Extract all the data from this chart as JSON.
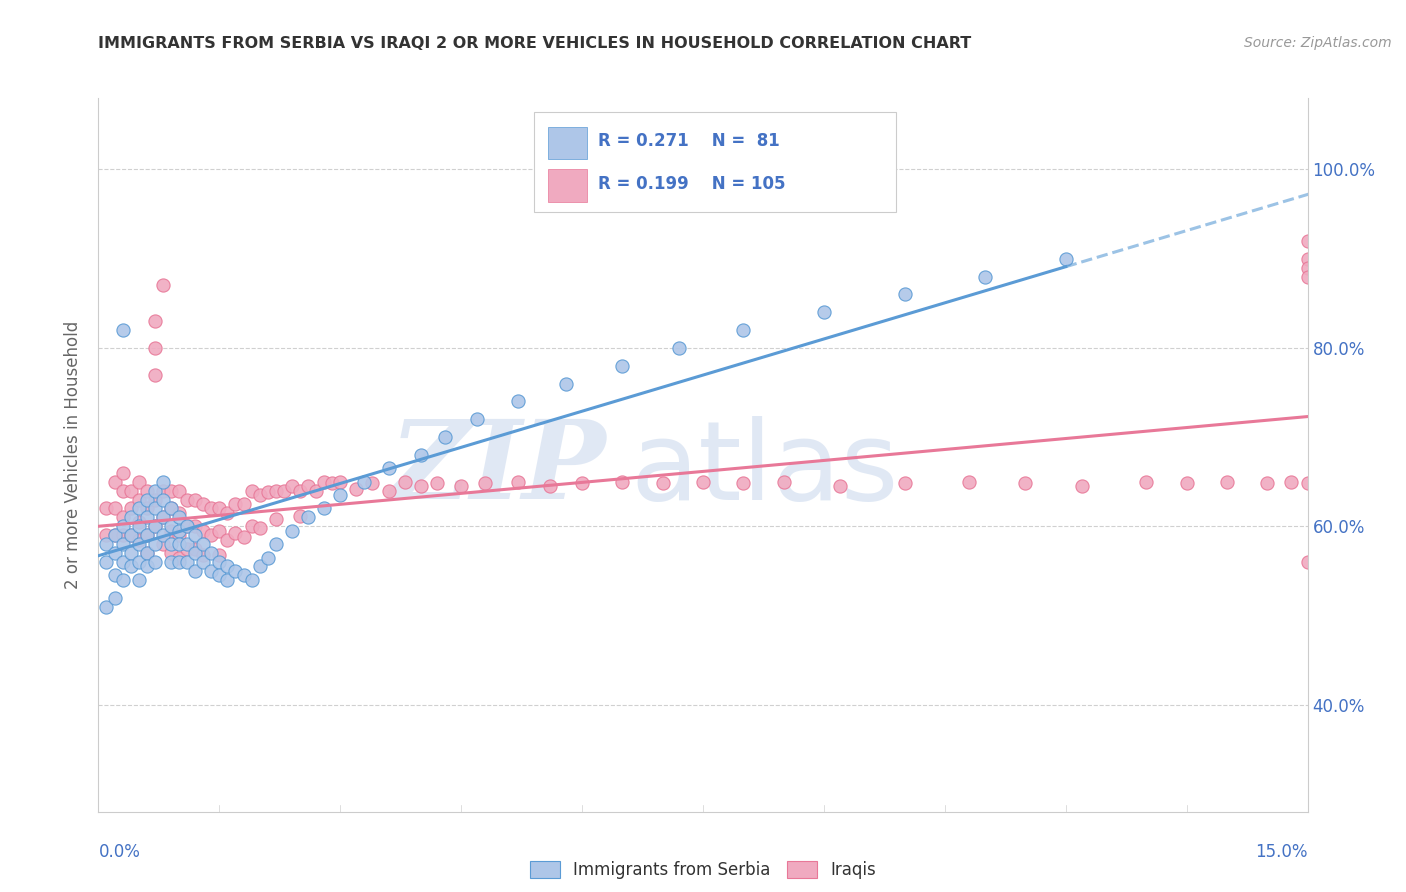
{
  "title": "IMMIGRANTS FROM SERBIA VS IRAQI 2 OR MORE VEHICLES IN HOUSEHOLD CORRELATION CHART",
  "source": "Source: ZipAtlas.com",
  "ylabel": "2 or more Vehicles in Household",
  "ytick_labels": [
    "40.0%",
    "60.0%",
    "80.0%",
    "100.0%"
  ],
  "ytick_values": [
    0.4,
    0.6,
    0.8,
    1.0
  ],
  "xlim": [
    0.0,
    0.15
  ],
  "ylim": [
    0.28,
    1.08
  ],
  "color_serbia": "#aec6e8",
  "color_iraq": "#f0aac0",
  "color_serbia_dark": "#5b9bd5",
  "color_iraq_dark": "#e87898",
  "color_blue_text": "#4472c4",
  "color_grid": "#d0d0d0",
  "watermark_zip": "#ccdaee",
  "watermark_atlas": "#ccdaee",
  "legend_text_color": "#4472c4",
  "serbia_scatter_x": [
    0.001,
    0.001,
    0.001,
    0.002,
    0.002,
    0.002,
    0.002,
    0.003,
    0.003,
    0.003,
    0.003,
    0.003,
    0.004,
    0.004,
    0.004,
    0.004,
    0.005,
    0.005,
    0.005,
    0.005,
    0.005,
    0.006,
    0.006,
    0.006,
    0.006,
    0.006,
    0.007,
    0.007,
    0.007,
    0.007,
    0.007,
    0.008,
    0.008,
    0.008,
    0.008,
    0.009,
    0.009,
    0.009,
    0.009,
    0.01,
    0.01,
    0.01,
    0.01,
    0.011,
    0.011,
    0.011,
    0.012,
    0.012,
    0.012,
    0.013,
    0.013,
    0.014,
    0.014,
    0.015,
    0.015,
    0.016,
    0.016,
    0.017,
    0.018,
    0.019,
    0.02,
    0.021,
    0.022,
    0.024,
    0.026,
    0.028,
    0.03,
    0.033,
    0.036,
    0.04,
    0.043,
    0.047,
    0.052,
    0.058,
    0.065,
    0.072,
    0.08,
    0.09,
    0.1,
    0.11,
    0.12
  ],
  "serbia_scatter_y": [
    0.58,
    0.56,
    0.51,
    0.59,
    0.57,
    0.545,
    0.52,
    0.6,
    0.58,
    0.56,
    0.54,
    0.82,
    0.61,
    0.59,
    0.57,
    0.555,
    0.62,
    0.6,
    0.58,
    0.56,
    0.54,
    0.63,
    0.61,
    0.59,
    0.57,
    0.555,
    0.64,
    0.62,
    0.6,
    0.58,
    0.56,
    0.65,
    0.63,
    0.61,
    0.59,
    0.62,
    0.6,
    0.58,
    0.56,
    0.61,
    0.595,
    0.58,
    0.56,
    0.6,
    0.58,
    0.56,
    0.59,
    0.57,
    0.55,
    0.58,
    0.56,
    0.57,
    0.55,
    0.56,
    0.545,
    0.555,
    0.54,
    0.55,
    0.545,
    0.54,
    0.555,
    0.565,
    0.58,
    0.595,
    0.61,
    0.62,
    0.635,
    0.65,
    0.665,
    0.68,
    0.7,
    0.72,
    0.74,
    0.76,
    0.78,
    0.8,
    0.82,
    0.84,
    0.86,
    0.88,
    0.9
  ],
  "iraq_scatter_x": [
    0.001,
    0.001,
    0.002,
    0.002,
    0.002,
    0.003,
    0.003,
    0.003,
    0.003,
    0.004,
    0.004,
    0.004,
    0.005,
    0.005,
    0.005,
    0.005,
    0.006,
    0.006,
    0.006,
    0.006,
    0.007,
    0.007,
    0.007,
    0.007,
    0.007,
    0.008,
    0.008,
    0.008,
    0.008,
    0.009,
    0.009,
    0.009,
    0.009,
    0.01,
    0.01,
    0.01,
    0.01,
    0.011,
    0.011,
    0.011,
    0.012,
    0.012,
    0.012,
    0.013,
    0.013,
    0.013,
    0.014,
    0.014,
    0.015,
    0.015,
    0.015,
    0.016,
    0.016,
    0.017,
    0.017,
    0.018,
    0.018,
    0.019,
    0.019,
    0.02,
    0.02,
    0.021,
    0.022,
    0.022,
    0.023,
    0.024,
    0.025,
    0.025,
    0.026,
    0.027,
    0.028,
    0.029,
    0.03,
    0.032,
    0.034,
    0.036,
    0.038,
    0.04,
    0.042,
    0.045,
    0.048,
    0.052,
    0.056,
    0.06,
    0.065,
    0.07,
    0.075,
    0.08,
    0.085,
    0.092,
    0.1,
    0.108,
    0.115,
    0.122,
    0.13,
    0.135,
    0.14,
    0.145,
    0.148,
    0.15,
    0.15,
    0.15,
    0.15,
    0.15,
    0.15
  ],
  "iraq_scatter_y": [
    0.62,
    0.59,
    0.65,
    0.62,
    0.59,
    0.66,
    0.64,
    0.61,
    0.59,
    0.64,
    0.62,
    0.59,
    0.65,
    0.63,
    0.605,
    0.585,
    0.64,
    0.62,
    0.59,
    0.57,
    0.83,
    0.8,
    0.77,
    0.63,
    0.6,
    0.87,
    0.64,
    0.61,
    0.58,
    0.64,
    0.62,
    0.595,
    0.57,
    0.64,
    0.615,
    0.59,
    0.565,
    0.63,
    0.6,
    0.575,
    0.63,
    0.6,
    0.575,
    0.625,
    0.595,
    0.568,
    0.62,
    0.59,
    0.62,
    0.595,
    0.568,
    0.615,
    0.585,
    0.625,
    0.592,
    0.625,
    0.588,
    0.64,
    0.6,
    0.635,
    0.598,
    0.638,
    0.64,
    0.608,
    0.64,
    0.645,
    0.64,
    0.612,
    0.645,
    0.64,
    0.65,
    0.648,
    0.65,
    0.642,
    0.648,
    0.64,
    0.65,
    0.645,
    0.648,
    0.645,
    0.648,
    0.65,
    0.645,
    0.648,
    0.65,
    0.648,
    0.65,
    0.648,
    0.65,
    0.645,
    0.648,
    0.65,
    0.648,
    0.645,
    0.65,
    0.648,
    0.65,
    0.648,
    0.65,
    0.648,
    0.9,
    0.89,
    0.92,
    0.88,
    0.56
  ]
}
